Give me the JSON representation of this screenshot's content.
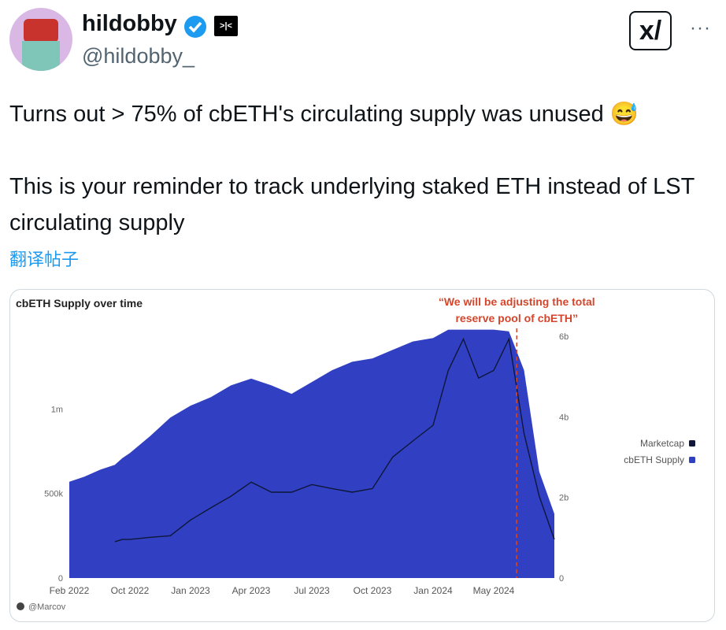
{
  "header": {
    "name": "hildobby",
    "badge": ">|<",
    "handle": "@hildobby_"
  },
  "post": {
    "paragraphs": [
      "Turns out > 75% of cbETH's circulating supply was unused 😅",
      "This is your reminder to track underlying staked ETH instead of LST circulating supply"
    ],
    "translate": "翻译帖子"
  },
  "chart_data": {
    "type": "area-line",
    "title": "cbETH Supply over time",
    "annotation": {
      "lines": [
        "“We will be adjusting the total",
        "reserve pool of cbETH”"
      ],
      "x": "2024-06",
      "color": "#d4462c"
    },
    "xticks": [
      {
        "value": "2022-02",
        "label": "Feb 2022"
      },
      {
        "value": "2022-10",
        "label": "Oct 2022"
      },
      {
        "value": "2023-01",
        "label": "Jan 2023"
      },
      {
        "value": "2023-04",
        "label": "Apr 2023"
      },
      {
        "value": "2023-07",
        "label": "Jul 2023"
      },
      {
        "value": "2023-10",
        "label": "Oct 2023"
      },
      {
        "value": "2024-01",
        "label": "Jan 2024"
      },
      {
        "value": "2024-05",
        "label": "May 2024"
      }
    ],
    "ylim": [
      0,
      1510000
    ],
    "yticks": [
      0,
      {
        "value": 500000,
        "label": "500k"
      },
      {
        "value": 1000000,
        "label": "1m"
      }
    ],
    "y2lim": [
      0,
      6330000000
    ],
    "y2ticks": [
      0,
      {
        "value": 2000000000,
        "label": "2b"
      },
      {
        "value": 4000000000,
        "label": "4b"
      },
      {
        "value": 6000000000,
        "label": "6b"
      }
    ],
    "series": [
      {
        "name": "Marketcap",
        "color": "#0e1639",
        "axis": "y2",
        "kind": "line",
        "x": [
          "2022-08",
          "2022-09",
          "2022-10",
          "2022-11",
          "2022-12",
          "2023-01",
          "2023-02",
          "2023-03",
          "2023-04",
          "2023-05",
          "2023-06",
          "2023-07",
          "2023-08",
          "2023-09",
          "2023-10",
          "2023-11",
          "2023-12",
          "2024-01",
          "2024-02",
          "2024-03",
          "2024-04",
          "2024-05",
          "2024-06",
          "2024-07",
          "2024-08",
          "2024-09"
        ],
        "values": [
          900000000,
          960000000,
          960000000,
          1010000000,
          1050000000,
          1440000000,
          1740000000,
          2030000000,
          2380000000,
          2130000000,
          2130000000,
          2320000000,
          2220000000,
          2130000000,
          2220000000,
          3000000000,
          3400000000,
          3790000000,
          5150000000,
          5930000000,
          4960000000,
          5150000000,
          5930000000,
          3590000000,
          2030000000,
          960000000
        ]
      },
      {
        "name": "cbETH Supply",
        "color": "#3140c2",
        "axis": "y",
        "kind": "area",
        "x": [
          "2022-02",
          "2022-04",
          "2022-06",
          "2022-08",
          "2022-09",
          "2022-10",
          "2022-11",
          "2022-12",
          "2023-01",
          "2023-02",
          "2023-03",
          "2023-04",
          "2023-05",
          "2023-06",
          "2023-07",
          "2023-08",
          "2023-09",
          "2023-10",
          "2023-11",
          "2023-12",
          "2024-01",
          "2024-02",
          "2024-03",
          "2024-04",
          "2024-05",
          "2024-06",
          "2024-07",
          "2024-08",
          "2024-09"
        ],
        "values": [
          570000,
          600000,
          640000,
          670000,
          710000,
          740000,
          840000,
          950000,
          1020000,
          1070000,
          1140000,
          1180000,
          1140000,
          1090000,
          1160000,
          1230000,
          1280000,
          1300000,
          1350000,
          1400000,
          1420000,
          1470000,
          1470000,
          1470000,
          1470000,
          1460000,
          1230000,
          630000,
          380000
        ]
      }
    ],
    "legend": "right",
    "credit": "@Marcov"
  }
}
